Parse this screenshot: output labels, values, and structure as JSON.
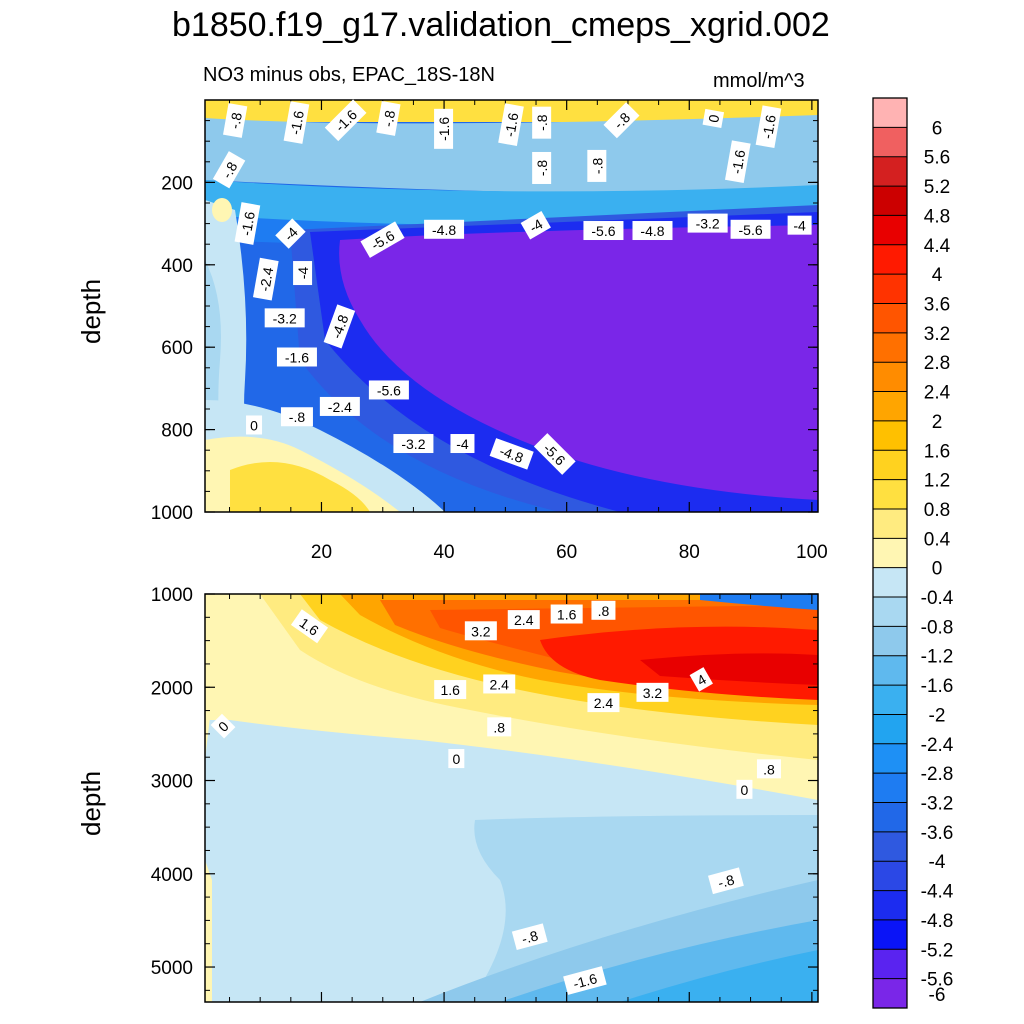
{
  "chart_data": {
    "type": "heatmap",
    "title": "b1850.f19_g17.validation_cmeps_xgrid.002",
    "subtitle": "NO3 minus obs, EPAC_18S-18N",
    "units": "mmol/m^3",
    "panels": [
      {
        "name": "upper",
        "ylabel": "depth",
        "xlim": [
          1,
          101
        ],
        "ylim": [
          1000,
          0
        ],
        "x_ticks": [
          20,
          40,
          60,
          80,
          100
        ],
        "x_tick_labels": [
          "20",
          "40",
          "60",
          "80",
          "100"
        ],
        "y_ticks": [
          200,
          400,
          600,
          800,
          1000
        ],
        "y_tick_labels": [
          "200",
          "400",
          "600",
          "800",
          "1000"
        ],
        "contour_labels": [
          {
            "text": "-.8",
            "x": 6,
            "y": 50,
            "angle": -80
          },
          {
            "text": "-1.6",
            "x": 16,
            "y": 55,
            "angle": -80
          },
          {
            "text": "-1.6",
            "x": 24,
            "y": 50,
            "angle": -45
          },
          {
            "text": "-.8",
            "x": 31,
            "y": 45,
            "angle": -80
          },
          {
            "text": "-1.6",
            "x": 40,
            "y": 70,
            "angle": -90
          },
          {
            "text": "-1.6",
            "x": 51,
            "y": 60,
            "angle": -80
          },
          {
            "text": "-.8",
            "x": 56,
            "y": 55,
            "angle": -90
          },
          {
            "text": "-.8",
            "x": 69,
            "y": 50,
            "angle": -45
          },
          {
            "text": "0",
            "x": 84,
            "y": 45,
            "angle": -80
          },
          {
            "text": "-1.6",
            "x": 93,
            "y": 65,
            "angle": -80
          },
          {
            "text": "-.8",
            "x": 5,
            "y": 170,
            "angle": -60
          },
          {
            "text": "-.8",
            "x": 56,
            "y": 165,
            "angle": -90
          },
          {
            "text": "-.8",
            "x": 65,
            "y": 160,
            "angle": -90
          },
          {
            "text": "-1.6",
            "x": 88,
            "y": 150,
            "angle": -80
          },
          {
            "text": "-1.6",
            "x": 8,
            "y": 300,
            "angle": -80
          },
          {
            "text": "-4",
            "x": 15,
            "y": 325,
            "angle": -45
          },
          {
            "text": "-5.6",
            "x": 30,
            "y": 340,
            "angle": -30
          },
          {
            "text": "-4.8",
            "x": 40,
            "y": 315,
            "angle": 0
          },
          {
            "text": "-4",
            "x": 55,
            "y": 305,
            "angle": -30
          },
          {
            "text": "-5.6",
            "x": 66,
            "y": 318,
            "angle": 0
          },
          {
            "text": "-4.8",
            "x": 74,
            "y": 318,
            "angle": 0
          },
          {
            "text": "-3.2",
            "x": 83,
            "y": 300,
            "angle": 0
          },
          {
            "text": "-5.6",
            "x": 90,
            "y": 315,
            "angle": 0
          },
          {
            "text": "-4",
            "x": 98,
            "y": 305,
            "angle": 0
          },
          {
            "text": "-2.4",
            "x": 11,
            "y": 435,
            "angle": -80
          },
          {
            "text": "-4",
            "x": 17,
            "y": 420,
            "angle": -90
          },
          {
            "text": "-3.2",
            "x": 14,
            "y": 530,
            "angle": 0
          },
          {
            "text": "-4.8",
            "x": 23,
            "y": 550,
            "angle": -70
          },
          {
            "text": "-1.6",
            "x": 16,
            "y": 625,
            "angle": 0
          },
          {
            "text": "-5.6",
            "x": 31,
            "y": 705,
            "angle": 0
          },
          {
            "text": "-2.4",
            "x": 23,
            "y": 745,
            "angle": 0
          },
          {
            "text": "-.8",
            "x": 16,
            "y": 770,
            "angle": 0
          },
          {
            "text": "0",
            "x": 9,
            "y": 790,
            "angle": 0
          },
          {
            "text": "-3.2",
            "x": 35,
            "y": 835,
            "angle": 0
          },
          {
            "text": "-4",
            "x": 43,
            "y": 835,
            "angle": 0
          },
          {
            "text": "-4.8",
            "x": 51,
            "y": 860,
            "angle": 20
          },
          {
            "text": "-5.6",
            "x": 58,
            "y": 860,
            "angle": 45
          }
        ]
      },
      {
        "name": "lower",
        "ylabel": "depth",
        "xlim": [
          1,
          101
        ],
        "ylim": [
          5375,
          1000
        ],
        "y_ticks": [
          1000,
          2000,
          3000,
          4000,
          5000
        ],
        "y_tick_labels": [
          "1000",
          "2000",
          "3000",
          "4000",
          "5000"
        ],
        "contour_labels": [
          {
            "text": "1.6",
            "x": 18,
            "y": 1350,
            "angle": 35
          },
          {
            "text": "3.2",
            "x": 46,
            "y": 1400,
            "angle": 0
          },
          {
            "text": "2.4",
            "x": 53,
            "y": 1280,
            "angle": 0
          },
          {
            "text": "1.6",
            "x": 60,
            "y": 1220,
            "angle": 0
          },
          {
            "text": ".8",
            "x": 66,
            "y": 1180,
            "angle": 0
          },
          {
            "text": "4",
            "x": 82,
            "y": 1920,
            "angle": -30
          },
          {
            "text": "3.2",
            "x": 74,
            "y": 2060,
            "angle": 0
          },
          {
            "text": "2.4",
            "x": 66,
            "y": 2170,
            "angle": 0
          },
          {
            "text": "2.4",
            "x": 49,
            "y": 1970,
            "angle": 0
          },
          {
            "text": "1.6",
            "x": 41,
            "y": 2030,
            "angle": 0
          },
          {
            "text": ".8",
            "x": 49,
            "y": 2430,
            "angle": 0
          },
          {
            "text": "0",
            "x": 42,
            "y": 2770,
            "angle": 0
          },
          {
            "text": "0",
            "x": 4,
            "y": 2420,
            "angle": -45
          },
          {
            "text": ".8",
            "x": 93,
            "y": 2880,
            "angle": 0
          },
          {
            "text": "0",
            "x": 89,
            "y": 3100,
            "angle": 0
          },
          {
            "text": "-.8",
            "x": 86,
            "y": 4080,
            "angle": -15
          },
          {
            "text": "-.8",
            "x": 54,
            "y": 4680,
            "angle": -15
          },
          {
            "text": "-1.6",
            "x": 63,
            "y": 5150,
            "angle": -15
          }
        ]
      }
    ],
    "colorbar": {
      "levels": [
        "6",
        "5.6",
        "5.2",
        "4.8",
        "4.4",
        "4",
        "3.6",
        "3.2",
        "2.8",
        "2.4",
        "2",
        "1.6",
        "1.2",
        "0.8",
        "0.4",
        "0",
        "-0.4",
        "-0.8",
        "-1.2",
        "-1.6",
        "-2",
        "-2.4",
        "-2.8",
        "-3.2",
        "-3.6",
        "-4",
        "-4.4",
        "-4.8",
        "-5.2",
        "-5.6",
        "-6"
      ],
      "colors": [
        "#ffb3b3",
        "#f06060",
        "#d42020",
        "#cc0000",
        "#e80000",
        "#ff1a00",
        "#ff3300",
        "#ff5500",
        "#ff7000",
        "#ff8c00",
        "#ffa500",
        "#ffc000",
        "#ffd21f",
        "#ffe040",
        "#ffeb80",
        "#fff6b3",
        "#c6e6f5",
        "#a9d8f1",
        "#8ec9ec",
        "#5fb9ee",
        "#3ab0f0",
        "#22a4f0",
        "#1e90f5",
        "#1e7cf2",
        "#2168e8",
        "#2f59e0",
        "#2b48e6",
        "#1c2cf0",
        "#0a14f7",
        "#5a23f0",
        "#7a26e8"
      ]
    }
  }
}
